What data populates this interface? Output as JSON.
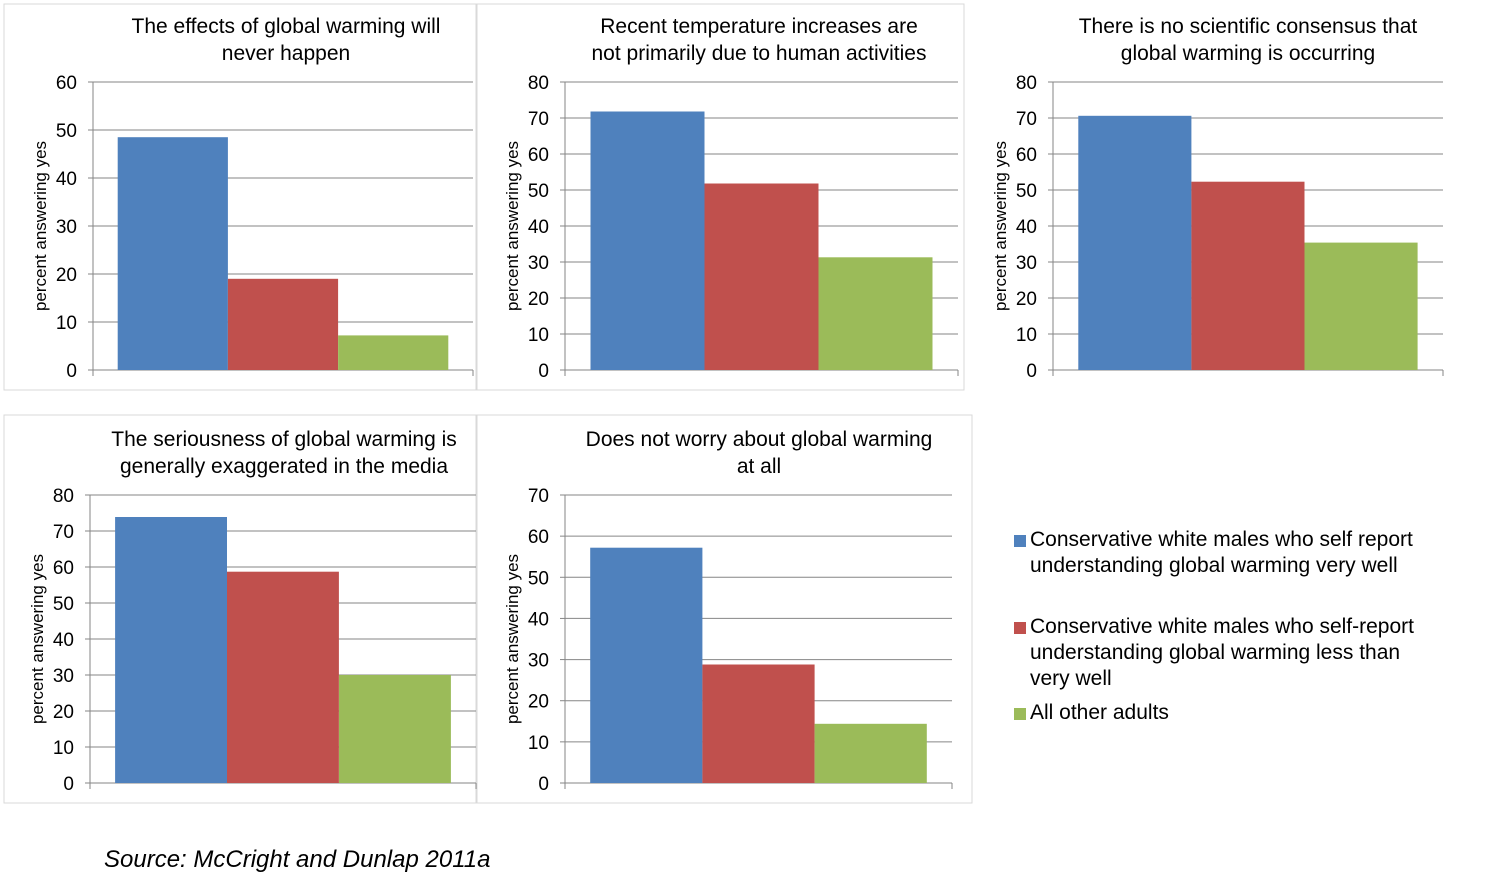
{
  "chart_data": [
    {
      "type": "bar",
      "title": [
        "The effects of global warming will",
        "never happen"
      ],
      "ylabel": "percent answering yes",
      "ylim": [
        0,
        60
      ],
      "yticks": [
        0,
        10,
        20,
        30,
        40,
        50,
        60
      ],
      "series": [
        {
          "name": "Conservative white males who self report understanding global warming very well",
          "values": [
            48.5
          ]
        },
        {
          "name": "Conservative white males who self-report understanding global warming less than very well",
          "values": [
            19
          ]
        },
        {
          "name": "All other adults",
          "values": [
            7.2
          ]
        }
      ]
    },
    {
      "type": "bar",
      "title": [
        "Recent temperature increases are",
        "not primarily due to human activities"
      ],
      "ylabel": "percent answering yes",
      "ylim": [
        0,
        80
      ],
      "yticks": [
        0,
        10,
        20,
        30,
        40,
        50,
        60,
        70,
        80
      ],
      "series": [
        {
          "name": "Conservative white males who self report understanding global warming very well",
          "values": [
            71.8
          ]
        },
        {
          "name": "Conservative white males who self-report understanding global warming less than very well",
          "values": [
            51.8
          ]
        },
        {
          "name": "All other adults",
          "values": [
            31.3
          ]
        }
      ]
    },
    {
      "type": "bar",
      "title": [
        "There is no scientific consensus that",
        "global warming is occurring"
      ],
      "ylabel": "percent answering yes",
      "ylim": [
        0,
        80
      ],
      "yticks": [
        0,
        10,
        20,
        30,
        40,
        50,
        60,
        70,
        80
      ],
      "series": [
        {
          "name": "Conservative white males who self report understanding global warming very well",
          "values": [
            70.6
          ]
        },
        {
          "name": "Conservative white males who self-report understanding global warming less than very well",
          "values": [
            52.3
          ]
        },
        {
          "name": "All other adults",
          "values": [
            35.4
          ]
        }
      ]
    },
    {
      "type": "bar",
      "title": [
        "The seriousness of global warming is",
        "generally exaggerated in the media"
      ],
      "ylabel": "percent answering yes",
      "ylim": [
        0,
        80
      ],
      "yticks": [
        0,
        10,
        20,
        30,
        40,
        50,
        60,
        70,
        80
      ],
      "series": [
        {
          "name": "Conservative white males who self report understanding global warming very well",
          "values": [
            73.9
          ]
        },
        {
          "name": "Conservative white males who self-report understanding global warming less than very well",
          "values": [
            58.7
          ]
        },
        {
          "name": "All other adults",
          "values": [
            30
          ]
        }
      ]
    },
    {
      "type": "bar",
      "title": [
        "Does not worry about global warming",
        "at all"
      ],
      "ylabel": "percent answering yes",
      "ylim": [
        0,
        70
      ],
      "yticks": [
        0,
        10,
        20,
        30,
        40,
        50,
        60,
        70
      ],
      "series": [
        {
          "name": "Conservative white males who self report understanding global warming very well",
          "values": [
            57.2
          ]
        },
        {
          "name": "Conservative white males who self-report understanding global warming less than very well",
          "values": [
            28.8
          ]
        },
        {
          "name": "All other adults",
          "values": [
            14.4
          ]
        }
      ]
    }
  ],
  "colors": [
    "#4f81bd",
    "#c0504d",
    "#9bbb59"
  ],
  "legend": {
    "items": [
      {
        "label_lines": [
          "Conservative white males who self report",
          "understanding global warming very well"
        ],
        "color": "#4f81bd"
      },
      {
        "label_lines": [
          "Conservative white males who self-report",
          "understanding global warming less than",
          "very well"
        ],
        "color": "#c0504d"
      },
      {
        "label_lines": [
          "All other adults"
        ],
        "color": "#9bbb59"
      }
    ]
  },
  "source": "Source: McCright and Dunlap 2011a"
}
